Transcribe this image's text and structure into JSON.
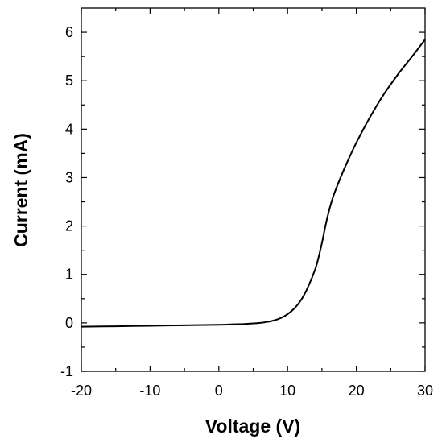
{
  "chart_data": {
    "type": "line",
    "title": "",
    "xlabel": "Voltage (V)",
    "ylabel": "Current (mA)",
    "xlim": [
      -20,
      30
    ],
    "ylim": [
      -1,
      6.5
    ],
    "xticks": [
      -20,
      -10,
      0,
      10,
      20,
      30
    ],
    "yticks": [
      -1,
      0,
      1,
      2,
      3,
      4,
      5,
      6
    ],
    "grid": false,
    "legend": "none",
    "series": [
      {
        "color": "#000000",
        "x": [
          -20,
          -15,
          -10,
          -5,
          0,
          2,
          4,
          6,
          7,
          8,
          9,
          10,
          11,
          12,
          13,
          14,
          14.5,
          15,
          15.5,
          16,
          16.5,
          17,
          18,
          19,
          20,
          22,
          24,
          26,
          28,
          30
        ],
        "y": [
          -0.08,
          -0.07,
          -0.06,
          -0.05,
          -0.04,
          -0.03,
          -0.02,
          0.0,
          0.02,
          0.05,
          0.1,
          0.18,
          0.3,
          0.48,
          0.75,
          1.1,
          1.35,
          1.65,
          2.0,
          2.3,
          2.55,
          2.75,
          3.1,
          3.42,
          3.72,
          4.25,
          4.72,
          5.12,
          5.48,
          5.85
        ]
      }
    ]
  }
}
